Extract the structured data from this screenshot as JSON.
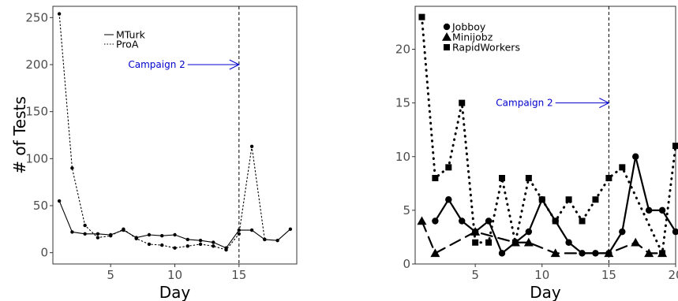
{
  "chart_data": [
    {
      "type": "line",
      "title": "",
      "xlabel": "Day",
      "ylabel": "# of Tests",
      "xlim": [
        0.5,
        19.5
      ],
      "ylim": [
        -12,
        262
      ],
      "xticks": [
        5,
        10,
        15
      ],
      "yticks": [
        0,
        50,
        100,
        150,
        200,
        250
      ],
      "grid": false,
      "legend": "top-left",
      "series": [
        {
          "name": "MTurk",
          "dash": "solid",
          "marker": "circle",
          "x": [
            1,
            2,
            3,
            4,
            5,
            6,
            7,
            8,
            9,
            10,
            11,
            12,
            13,
            14,
            15,
            16,
            17,
            18,
            19
          ],
          "y": [
            55,
            22,
            20,
            20,
            19,
            24,
            16,
            19,
            18,
            19,
            14,
            13,
            11,
            5,
            24,
            24,
            14,
            13,
            25
          ]
        },
        {
          "name": "ProA",
          "dash": "dotted",
          "marker": "circle",
          "x": [
            1,
            2,
            3,
            4,
            5,
            6,
            7,
            8,
            9,
            10,
            11,
            12,
            13,
            14,
            15,
            16,
            17
          ],
          "y": [
            254,
            90,
            29,
            16,
            18,
            25,
            15,
            9,
            8,
            5,
            7,
            9,
            7,
            3,
            20,
            113,
            14
          ]
        }
      ],
      "annotations": [
        {
          "text": "Campaign 2",
          "x_from": 11,
          "x_to": 15,
          "y": 200,
          "color": "#0000cc"
        }
      ],
      "vline": 15
    },
    {
      "type": "line",
      "title": "",
      "xlabel": "Day",
      "ylabel": "",
      "xlim": [
        0.5,
        20
      ],
      "ylim": [
        0,
        24
      ],
      "xticks": [
        5,
        10,
        15,
        20
      ],
      "yticks": [
        0,
        5,
        10,
        15,
        20
      ],
      "grid": false,
      "legend": "top-left",
      "series": [
        {
          "name": "Jobboy",
          "dash": "solid",
          "marker": "circle",
          "x": [
            2,
            3,
            4,
            5,
            6,
            7,
            8,
            9,
            10,
            11,
            12,
            13,
            14,
            15,
            16,
            17,
            18,
            19,
            20
          ],
          "y": [
            4,
            6,
            4,
            3,
            4,
            1,
            2,
            3,
            6,
            4,
            2,
            1,
            1,
            1,
            3,
            10,
            5,
            5,
            3
          ]
        },
        {
          "name": "Minijobz",
          "dash": "dashed",
          "marker": "triangle",
          "x": [
            1,
            2,
            5,
            8,
            9,
            11,
            15,
            17,
            18,
            19
          ],
          "y": [
            4,
            1,
            3,
            2,
            2,
            1,
            1,
            2,
            1,
            1
          ]
        },
        {
          "name": "RapidWorkers",
          "dash": "dotted",
          "marker": "square",
          "x": [
            1,
            2,
            3,
            4,
            5,
            6,
            7,
            8,
            9,
            10,
            11,
            12,
            13,
            14,
            15,
            16,
            19,
            20
          ],
          "y": [
            23,
            8,
            9,
            15,
            2,
            2,
            8,
            2,
            8,
            6,
            4,
            6,
            4,
            6,
            8,
            9,
            1,
            11
          ]
        }
      ],
      "annotations": [
        {
          "text": "Campaign 2",
          "x_from": 11,
          "x_to": 15,
          "y": 15,
          "color": "#0000cc"
        }
      ],
      "vline": 15
    }
  ]
}
